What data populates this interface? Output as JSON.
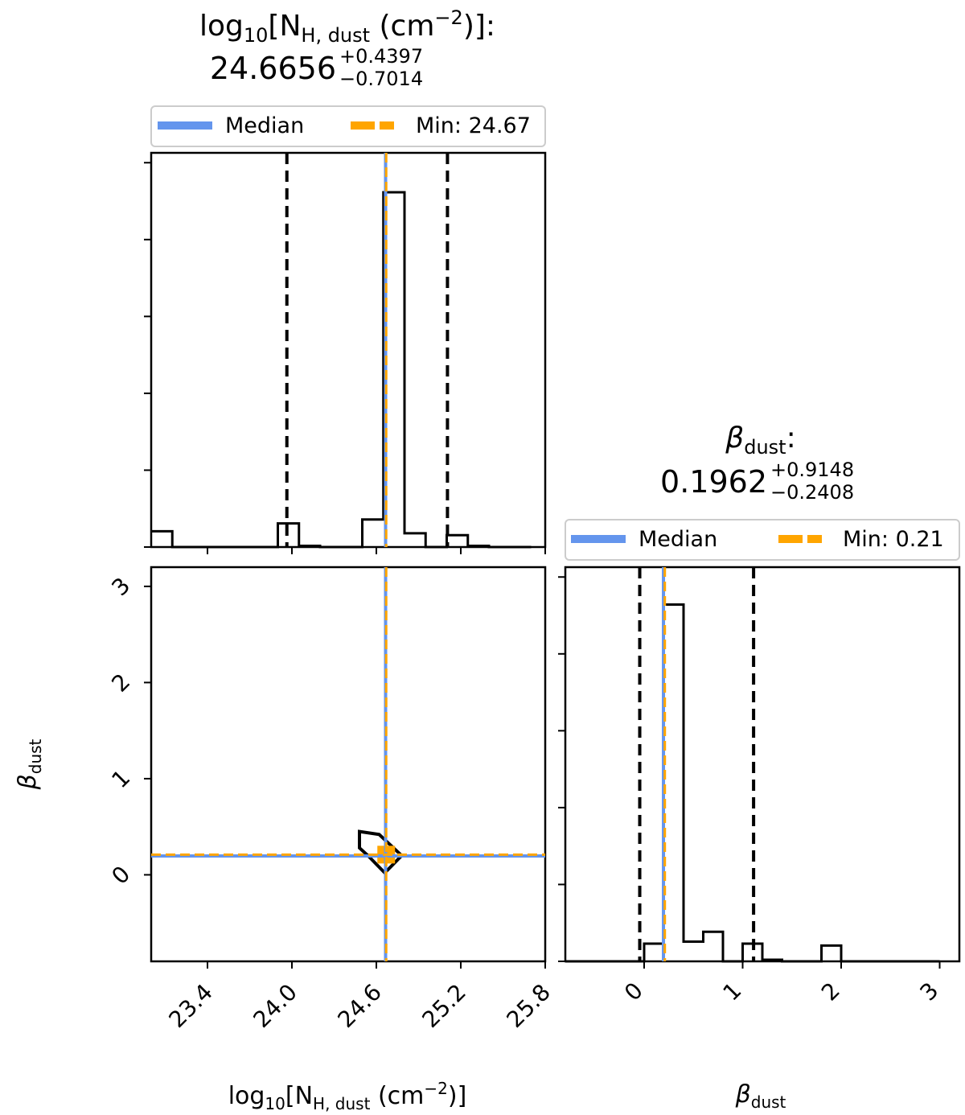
{
  "panels": {
    "nh": {
      "title_main": "log",
      "title_sub10": "10",
      "title_bracket": "[N",
      "title_subH": "H, dust",
      "title_unit": " (cm",
      "title_exp": "−2",
      "title_close": ")]:",
      "value": "24.6656",
      "err_plus": "+0.4397",
      "err_minus": "−0.7014",
      "legend_median": "Median",
      "legend_min": "Min: 24.67"
    },
    "beta": {
      "title_sym": "β",
      "title_sub": "dust",
      "title_colon": ":",
      "value": "0.1962",
      "err_plus": "+0.9148",
      "err_minus": "−0.2408",
      "legend_median": "Median",
      "legend_min": "Min: 0.21"
    }
  },
  "axes": {
    "x_label_main": "log",
    "x_label_sub10": "10",
    "x_label_bracket": "[N",
    "x_label_subH": "H, dust",
    "x_label_unit": " (cm",
    "x_label_exp": "−2",
    "x_label_close": ")]",
    "beta_label_sym": "β",
    "beta_label_sub": "dust"
  },
  "colors": {
    "median": "#6495ED",
    "min": "#FFA500",
    "hist": "#000000",
    "quantile": "#000000"
  },
  "chart_data": [
    {
      "id": "nh_hist",
      "type": "histogram",
      "xlim": [
        23.0,
        25.8
      ],
      "bin_edges": [
        23.0,
        23.15,
        23.3,
        23.45,
        23.6,
        23.75,
        23.9,
        24.05,
        24.2,
        24.35,
        24.5,
        24.65,
        24.8,
        24.95,
        25.1,
        25.25,
        25.4,
        25.55,
        25.7
      ],
      "counts": [
        0.04,
        0,
        0,
        0,
        0,
        0,
        0.06,
        0.003,
        0,
        0,
        0.07,
        0.9,
        0.035,
        0,
        0.03,
        0.003,
        0,
        0
      ],
      "ylim": [
        0,
        1.0
      ],
      "median": 24.6656,
      "min": 24.67,
      "quantiles": [
        23.9642,
        25.1053
      ]
    },
    {
      "id": "beta_hist",
      "type": "histogram",
      "xlim": [
        -0.8,
        3.2
      ],
      "bin_edges": [
        -0.8,
        -0.6,
        -0.4,
        -0.2,
        0.0,
        0.2,
        0.4,
        0.6,
        0.8,
        1.0,
        1.2,
        1.4,
        1.6,
        1.8,
        2.0,
        2.2,
        2.4,
        2.6,
        2.8,
        3.0
      ],
      "counts": [
        0,
        0,
        0,
        0,
        0.045,
        0.905,
        0.05,
        0.075,
        0,
        0.045,
        0.004,
        0,
        0,
        0.04,
        0,
        0,
        0,
        0,
        0
      ],
      "ylim": [
        0,
        1.0
      ],
      "median": 0.1962,
      "min": 0.21,
      "quantiles": [
        -0.0446,
        1.111
      ]
    },
    {
      "id": "joint",
      "type": "scatter",
      "xlim": [
        23.0,
        25.8
      ],
      "ylim": [
        -0.9,
        3.2
      ],
      "x_ticks": [
        "23.4",
        "24.0",
        "24.6",
        "25.2",
        "25.8"
      ],
      "x_tick_values": [
        23.4,
        24.0,
        24.6,
        25.2,
        25.8
      ],
      "y_ticks": [
        "0",
        "1",
        "2",
        "3"
      ],
      "y_tick_values": [
        0,
        1,
        2,
        3
      ],
      "median_point": [
        24.6656,
        0.1962
      ],
      "min_point": [
        24.67,
        0.21
      ],
      "contour": [
        [
          24.48,
          0.45
        ],
        [
          24.62,
          0.42
        ],
        [
          24.78,
          0.2
        ],
        [
          24.66,
          0.02
        ],
        [
          24.54,
          0.2
        ],
        [
          24.48,
          0.28
        ]
      ]
    },
    {
      "id": "beta_marginal_axis",
      "type": "axis",
      "x_ticks": [
        "0",
        "1",
        "2",
        "3"
      ],
      "x_tick_values": [
        0,
        1,
        2,
        3
      ]
    }
  ]
}
